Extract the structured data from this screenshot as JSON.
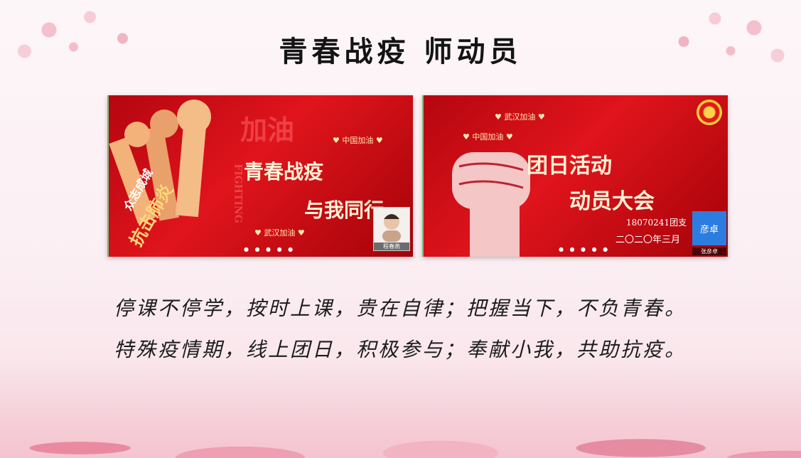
{
  "title": "青春战疫 师动员",
  "left_video": {
    "badge_text_1": "众志成城",
    "badge_text_2": "抗击肺炎",
    "bg_text": "加油",
    "bg_text_2": "FIGHTING",
    "heading_1": "青春战疫",
    "heading_2": "与我同行",
    "tag_top": "♥ 中国加油 ♥",
    "tag_bottom": "♥ 武汉加油 ♥",
    "participant_name": "程春燕"
  },
  "right_video": {
    "tag_top": "♥ 武汉加油 ♥",
    "tag_mid": "♥ 中国加油 ♥",
    "heading_1": "团日活动",
    "heading_2": "动员大会",
    "class_text": "18070241团支",
    "date_text": "二〇二〇年三月",
    "avatar_text": "彦卓",
    "participant_name": "张彦卓"
  },
  "caption_1": "停课不停学，按时上课，贵在自律；把握当下，不负青春。",
  "caption_2": "特殊疫情期，线上团日，积极参与；奉献小我，共助抗疫。",
  "pager_dots": "● ● ● ● ●",
  "colors": {
    "accent": "#d4121a",
    "text": "#1c1c1c"
  }
}
